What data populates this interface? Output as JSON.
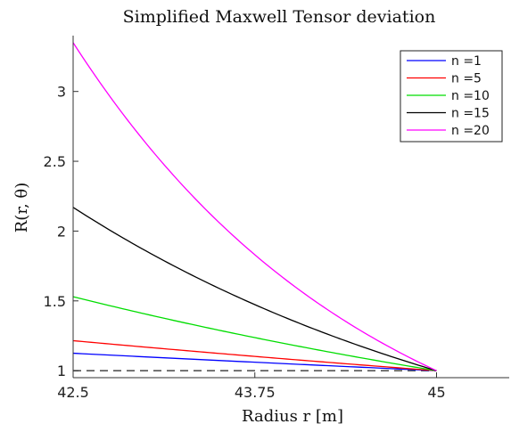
{
  "chart_data": {
    "type": "line",
    "title": "Simplified Maxwell Tensor deviation",
    "xlabel": "Radius r [m]",
    "ylabel": "R(r, θ)",
    "xlim": [
      42.5,
      45.5
    ],
    "ylim": [
      0.95,
      3.4
    ],
    "x_ticks": [
      42.5,
      43.75,
      45
    ],
    "x_tick_labels": [
      "42.5",
      "43.75",
      "45"
    ],
    "y_ticks": [
      1,
      1.5,
      2,
      2.5,
      3
    ],
    "y_tick_labels": [
      "1",
      "1.5",
      "2",
      "2.5",
      "3"
    ],
    "x_range": [
      42.5,
      45
    ],
    "legend_position": "top-right",
    "grid": false,
    "series": [
      {
        "name": "n =1",
        "color": "#0000ff",
        "y_start": 1.125,
        "y_end": 1.0
      },
      {
        "name": "n =5",
        "color": "#ff0000",
        "y_start": 1.215,
        "y_end": 1.0
      },
      {
        "name": "n =10",
        "color": "#00dd00",
        "y_start": 1.53,
        "y_end": 1.0
      },
      {
        "name": "n =15",
        "color": "#000000",
        "y_start": 2.17,
        "y_end": 1.0
      },
      {
        "name": "n =20",
        "color": "#ff00ff",
        "y_start": 3.35,
        "y_end": 1.0
      }
    ],
    "reference_line": {
      "y": 1.0,
      "style": "dashed",
      "color": "#555555"
    }
  }
}
